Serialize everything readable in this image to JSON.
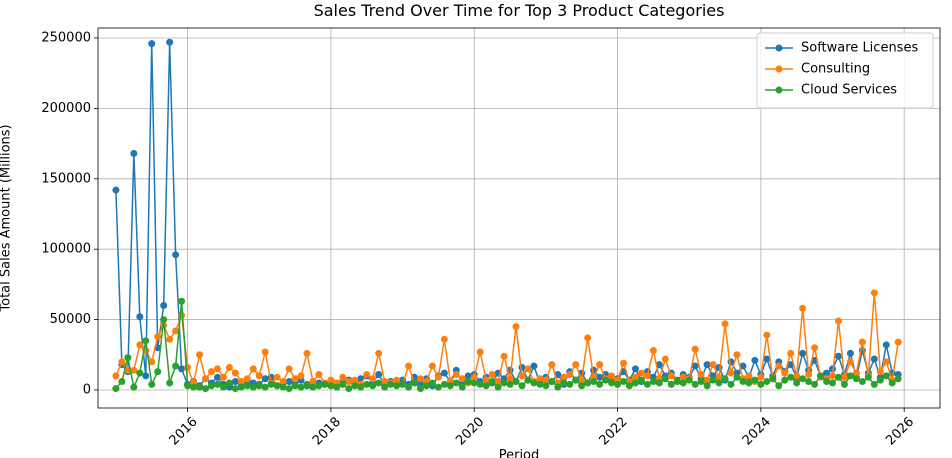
{
  "chart_data": {
    "type": "line",
    "title": "Sales Trend Over Time for Top 3 Product Categories",
    "xlabel": "Period",
    "ylabel": "Total Sales Amount (Millions)",
    "x": [
      "2015-01",
      "2015-02",
      "2015-03",
      "2015-04",
      "2015-05",
      "2015-06",
      "2015-07",
      "2015-08",
      "2015-09",
      "2015-10",
      "2015-11",
      "2015-12",
      "2016-01",
      "2016-02",
      "2016-03",
      "2016-04",
      "2016-05",
      "2016-06",
      "2016-07",
      "2016-08",
      "2016-09",
      "2016-10",
      "2016-11",
      "2016-12",
      "2017-01",
      "2017-02",
      "2017-03",
      "2017-04",
      "2017-05",
      "2017-06",
      "2017-07",
      "2017-08",
      "2017-09",
      "2017-10",
      "2017-11",
      "2017-12",
      "2018-01",
      "2018-02",
      "2018-03",
      "2018-04",
      "2018-05",
      "2018-06",
      "2018-07",
      "2018-08",
      "2018-09",
      "2018-10",
      "2018-11",
      "2018-12",
      "2019-01",
      "2019-02",
      "2019-03",
      "2019-04",
      "2019-05",
      "2019-06",
      "2019-07",
      "2019-08",
      "2019-09",
      "2019-10",
      "2019-11",
      "2019-12",
      "2020-01",
      "2020-02",
      "2020-03",
      "2020-04",
      "2020-05",
      "2020-06",
      "2020-07",
      "2020-08",
      "2020-09",
      "2020-10",
      "2020-11",
      "2020-12",
      "2021-01",
      "2021-02",
      "2021-03",
      "2021-04",
      "2021-05",
      "2021-06",
      "2021-07",
      "2021-08",
      "2021-09",
      "2021-10",
      "2021-11",
      "2021-12",
      "2022-01",
      "2022-02",
      "2022-03",
      "2022-04",
      "2022-05",
      "2022-06",
      "2022-07",
      "2022-08",
      "2022-09",
      "2022-10",
      "2022-11",
      "2022-12",
      "2023-01",
      "2023-02",
      "2023-03",
      "2023-04",
      "2023-05",
      "2023-06",
      "2023-07",
      "2023-08",
      "2023-09",
      "2023-10",
      "2023-11",
      "2023-12",
      "2024-01",
      "2024-02",
      "2024-03",
      "2024-04",
      "2024-05",
      "2024-06",
      "2024-07",
      "2024-08",
      "2024-09",
      "2024-10",
      "2024-11",
      "2024-12",
      "2025-01",
      "2025-02",
      "2025-03",
      "2025-04",
      "2025-05",
      "2025-06",
      "2025-07",
      "2025-08",
      "2025-09",
      "2025-10",
      "2025-11",
      "2025-12"
    ],
    "series": [
      {
        "name": "Software Licenses",
        "color": "#1f77b4",
        "values": [
          142000,
          18000,
          13000,
          168000,
          52000,
          10000,
          246000,
          30000,
          60000,
          247000,
          96000,
          15000,
          4000,
          6000,
          3000,
          8000,
          5000,
          9000,
          4000,
          2000,
          6000,
          3000,
          7000,
          5000,
          4000,
          8000,
          9000,
          3000,
          5000,
          6000,
          4000,
          7000,
          3000,
          6000,
          5000,
          4000,
          6000,
          3000,
          5000,
          7000,
          4000,
          8000,
          10000,
          5000,
          11000,
          4000,
          6000,
          5000,
          7000,
          4000,
          9000,
          5000,
          8000,
          3000,
          10000,
          12000,
          6000,
          14000,
          5000,
          10000,
          11000,
          6000,
          9000,
          5000,
          12000,
          8000,
          14000,
          6000,
          16000,
          7000,
          17000,
          5000,
          9000,
          6000,
          11000,
          4000,
          13000,
          7000,
          12000,
          5000,
          14000,
          9000,
          11000,
          6000,
          8000,
          13000,
          7000,
          15000,
          6000,
          13000,
          9000,
          18000,
          10000,
          12000,
          7000,
          11000,
          9000,
          17000,
          8000,
          18000,
          10000,
          16000,
          7000,
          20000,
          12000,
          17000,
          9000,
          21000,
          11000,
          22000,
          10000,
          20000,
          13000,
          18000,
          9000,
          26000,
          14000,
          21000,
          10000,
          12000,
          15000,
          24000,
          11000,
          26000,
          9000,
          28000,
          12000,
          22000,
          9000,
          32000,
          12000,
          11000
        ]
      },
      {
        "name": "Consulting",
        "color": "#ff7f0e",
        "values": [
          10000,
          20000,
          14000,
          14000,
          32000,
          28000,
          20000,
          38000,
          46000,
          36000,
          42000,
          53000,
          16000,
          5000,
          25000,
          8000,
          13000,
          15000,
          9000,
          16000,
          12000,
          6000,
          8000,
          15000,
          10000,
          27000,
          5000,
          9000,
          6000,
          15000,
          8000,
          10000,
          26000,
          6000,
          11000,
          5000,
          7000,
          5000,
          9000,
          6000,
          7000,
          4000,
          11000,
          8000,
          26000,
          6000,
          5000,
          7000,
          4000,
          17000,
          5000,
          8000,
          6000,
          17000,
          9000,
          36000,
          6000,
          11000,
          8000,
          5000,
          9000,
          27000,
          7000,
          11000,
          6000,
          24000,
          8000,
          45000,
          10000,
          15000,
          6000,
          8000,
          7000,
          18000,
          5000,
          9000,
          11000,
          18000,
          7000,
          37000,
          9000,
          18000,
          8000,
          10000,
          7000,
          19000,
          6000,
          9000,
          12000,
          10000,
          28000,
          8000,
          22000,
          10000,
          6000,
          9000,
          8000,
          29000,
          11000,
          7000,
          18000,
          9000,
          47000,
          12000,
          25000,
          8000,
          10000,
          6000,
          9000,
          39000,
          8000,
          17000,
          12000,
          26000,
          10000,
          58000,
          11000,
          30000,
          9000,
          8000,
          10000,
          49000,
          9000,
          20000,
          12000,
          34000,
          10000,
          69000,
          13000,
          20000,
          7000,
          34000
        ]
      },
      {
        "name": "Cloud Services",
        "color": "#2ca02c",
        "values": [
          1000,
          6000,
          23000,
          2000,
          12000,
          35000,
          4000,
          13000,
          50000,
          5000,
          17000,
          63000,
          3000,
          2000,
          2000,
          1000,
          3000,
          4000,
          2000,
          5000,
          1000,
          2000,
          3000,
          2000,
          3000,
          2000,
          4000,
          3000,
          2000,
          1000,
          3000,
          2000,
          4000,
          2000,
          3000,
          4000,
          3000,
          2000,
          4000,
          1000,
          3000,
          2000,
          4000,
          3000,
          5000,
          2000,
          4000,
          3000,
          4000,
          2000,
          5000,
          1000,
          3000,
          5000,
          2000,
          4000,
          3000,
          5000,
          2000,
          6000,
          5000,
          4000,
          3000,
          6000,
          2000,
          5000,
          4000,
          6000,
          3000,
          7000,
          5000,
          4000,
          3000,
          6000,
          2000,
          5000,
          4000,
          7000,
          3000,
          5000,
          6000,
          4000,
          7000,
          5000,
          4000,
          6000,
          3000,
          5000,
          7000,
          4000,
          6000,
          5000,
          8000,
          4000,
          6000,
          5000,
          7000,
          4000,
          6000,
          3000,
          7000,
          5000,
          8000,
          4000,
          9000,
          6000,
          5000,
          7000,
          4000,
          6000,
          8000,
          3000,
          7000,
          9000,
          5000,
          8000,
          6000,
          4000,
          10000,
          6000,
          5000,
          9000,
          4000,
          10000,
          8000,
          6000,
          9000,
          4000,
          7000,
          10000,
          5000,
          8000
        ]
      }
    ],
    "xlim": [
      2014.75,
      2026.5
    ],
    "xticks": [
      2016,
      2018,
      2020,
      2022,
      2024,
      2026
    ],
    "ylim": [
      -12800,
      257100
    ],
    "yticks": [
      0,
      50000,
      100000,
      150000,
      200000,
      250000
    ],
    "grid": true,
    "legend": "upper right"
  }
}
